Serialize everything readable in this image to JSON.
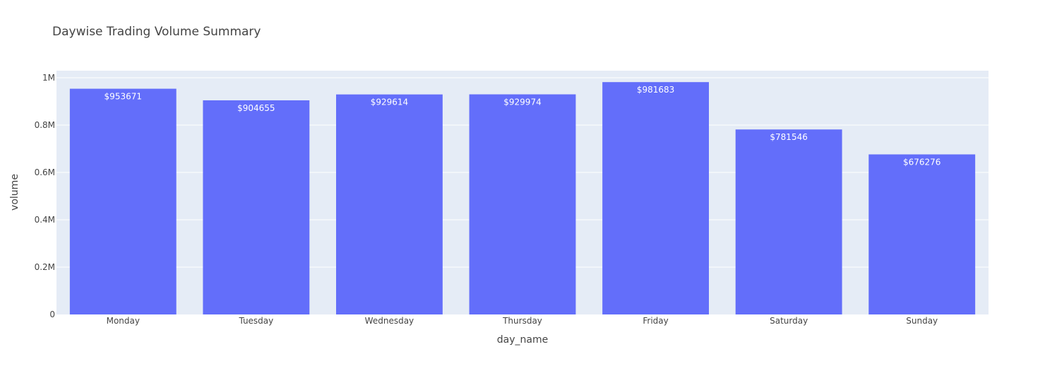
{
  "chart_data": {
    "type": "bar",
    "title": "Daywise Trading Volume Summary",
    "xlabel": "day_name",
    "ylabel": "volume",
    "categories": [
      "Monday",
      "Tuesday",
      "Wednesday",
      "Thursday",
      "Friday",
      "Saturday",
      "Sunday"
    ],
    "values": [
      953671,
      904655,
      929614,
      929974,
      981683,
      781546,
      676276
    ],
    "data_labels": [
      "$953671",
      "$904655",
      "$929614",
      "$929974",
      "$981683",
      "$781546",
      "$676276"
    ],
    "ylim": [
      0,
      1030000
    ],
    "yticks": [
      0,
      200000,
      400000,
      600000,
      800000,
      1000000
    ],
    "ytick_labels": [
      "0",
      "0.2M",
      "0.4M",
      "0.6M",
      "0.8M",
      "1M"
    ],
    "grid": true,
    "colors": {
      "bar": "#636efa",
      "plot_background": "#e5ecf6",
      "grid": "#ffffff",
      "text": "#444444",
      "data_label": "#ffffff"
    }
  }
}
